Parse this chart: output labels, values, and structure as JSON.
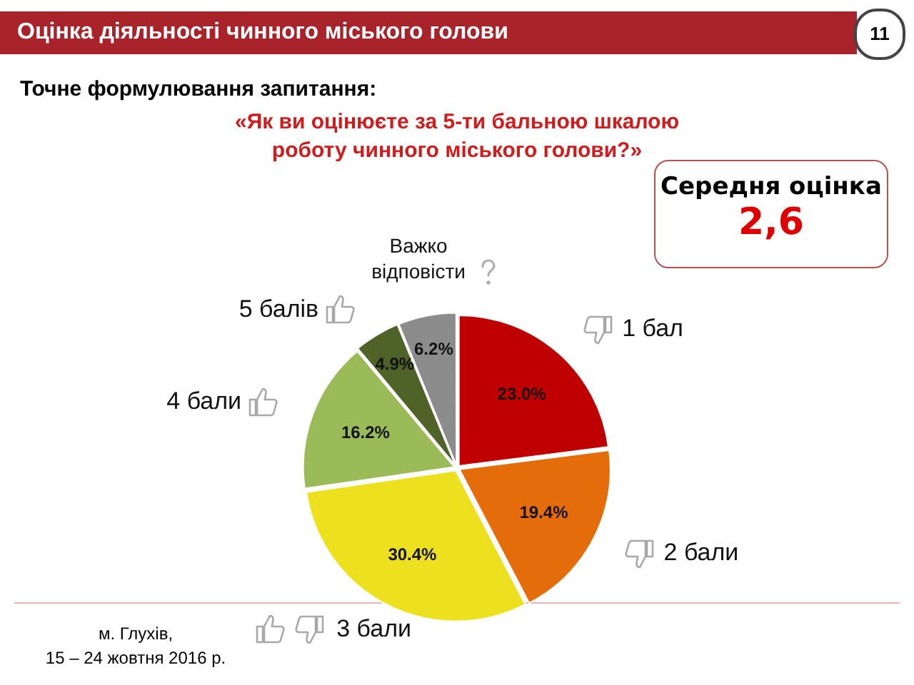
{
  "chart_data": {
    "type": "pie",
    "title": "Оцінка діяльності чинного міського голови",
    "subtitle": "Точне формулювання запитання:",
    "categories": [
      "1 бал",
      "2 бали",
      "3 бали",
      "4 бали",
      "5 балів",
      "Важко відповісти"
    ],
    "values": [
      23.0,
      19.4,
      30.4,
      16.2,
      4.9,
      6.2
    ],
    "colors": [
      "#c00000",
      "#e46c0a",
      "#ede11f",
      "#9bbb59",
      "#4f6228",
      "#8c8c8c"
    ],
    "value_labels": [
      "23.0%",
      "19.4%",
      "30.4%",
      "16.2%",
      "4.9%",
      "6.2%"
    ],
    "annotations": [
      "«Як ви оцінюєте за 5-ти бальною шкалою роботу чинного міського голови?»",
      "Середня оцінка",
      "2,6",
      "м. Глухів,",
      "15 – 24 жовтня 2016 р.",
      "11"
    ],
    "legend": false
  }
}
